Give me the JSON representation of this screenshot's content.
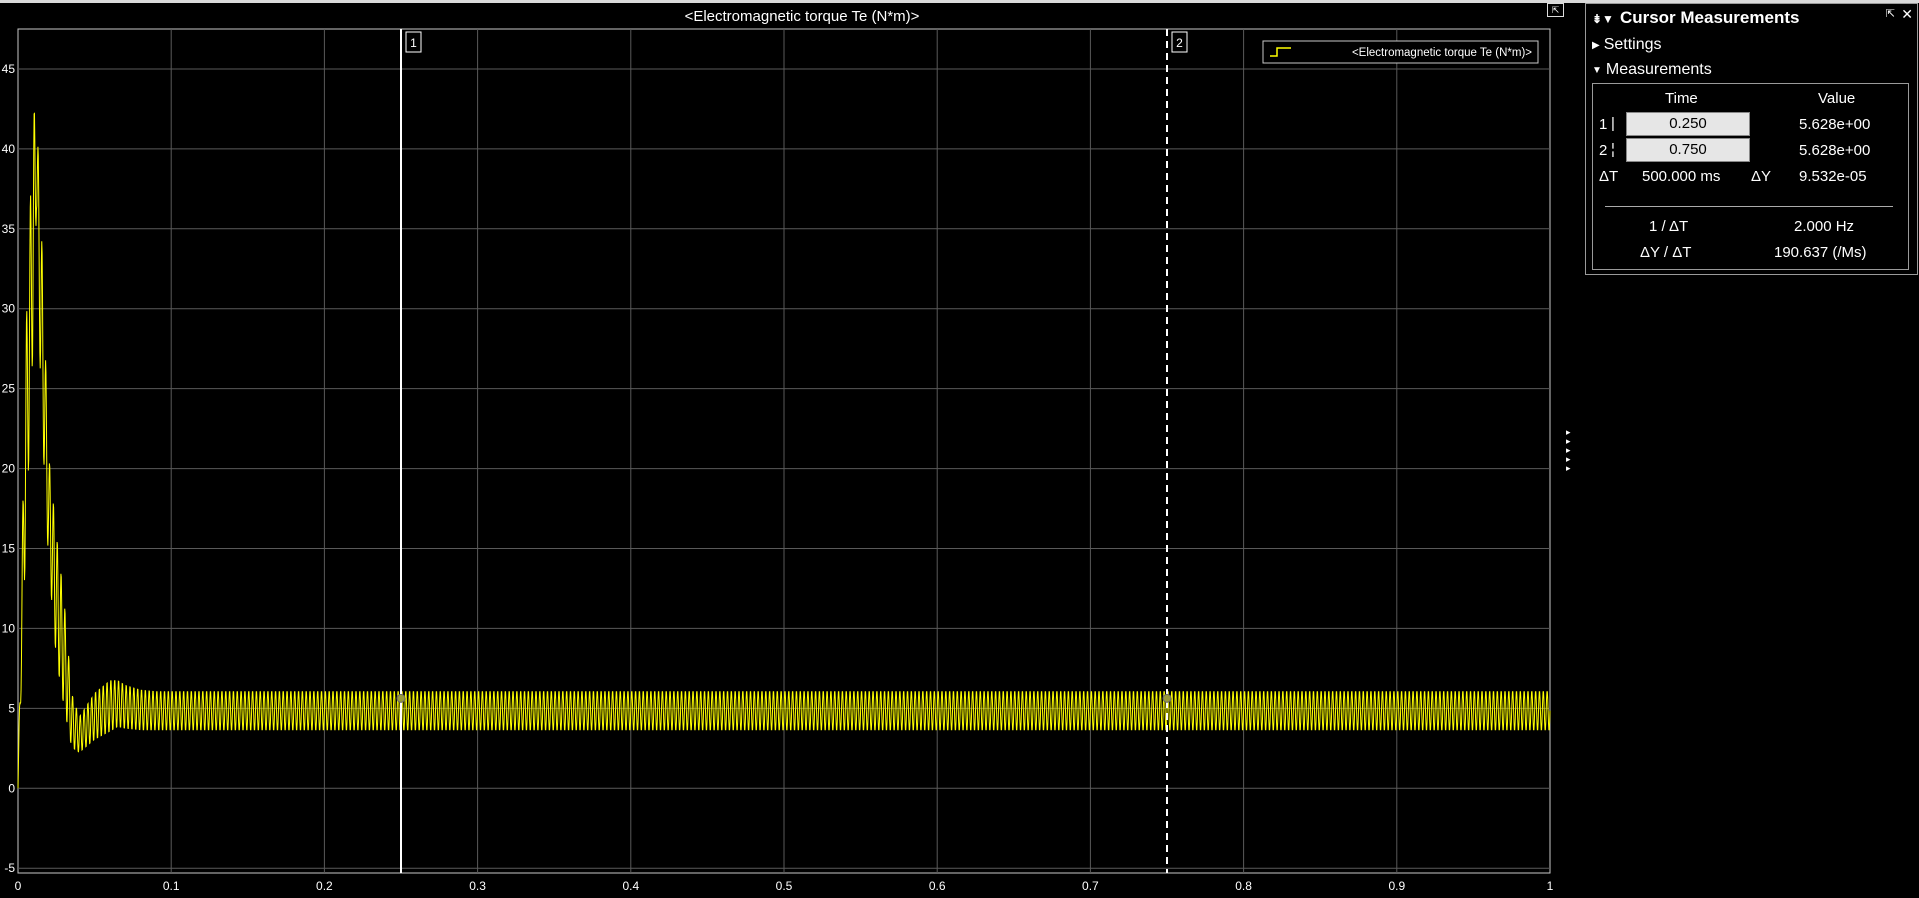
{
  "chart_data": {
    "type": "line",
    "title": "<Electromagnetic torque Te (N*m)>",
    "xlim": [
      0,
      1
    ],
    "ylim": [
      -5.3,
      47.5
    ],
    "xticks": [
      "0",
      "0.1",
      "0.2",
      "0.3",
      "0.4",
      "0.5",
      "0.6",
      "0.7",
      "0.8",
      "0.9",
      "1"
    ],
    "yticks": [
      "-5",
      "0",
      "5",
      "10",
      "15",
      "20",
      "25",
      "30",
      "35",
      "40",
      "45"
    ],
    "grid": true,
    "legend": {
      "position": "top-right",
      "entries": [
        "<Electromagnetic torque Te (N*m)>"
      ]
    },
    "series": [
      {
        "name": "<Electromagnetic torque Te (N*m)>",
        "color": "#ffff00",
        "envelope": {
          "x": [
            0,
            0.005,
            0.01,
            0.012,
            0.015,
            0.02,
            0.025,
            0.03,
            0.035,
            0.04,
            0.05,
            0.06,
            0.065,
            0.07,
            0.08,
            0.09,
            0.1,
            1.0
          ],
          "upper": [
            0,
            28,
            42.5,
            42.5,
            36,
            21,
            16,
            12,
            6,
            4.5,
            6,
            6.8,
            6.8,
            6.5,
            6.2,
            6.1,
            6.1,
            6.1
          ],
          "lower": [
            0,
            15,
            28,
            36,
            24,
            14,
            8,
            5,
            2.5,
            2.2,
            3,
            3.5,
            3.8,
            3.7,
            3.6,
            3.6,
            3.6,
            3.6
          ]
        },
        "ripple_count": 400
      }
    ],
    "cursors": [
      {
        "label": "1",
        "x": 0.25,
        "style": "solid",
        "y": 5.628
      },
      {
        "label": "2",
        "x": 0.75,
        "style": "dashed",
        "y": 5.628
      }
    ]
  },
  "panel": {
    "title": "Cursor Measurements",
    "settings_label": "Settings",
    "measurements_label": "Measurements",
    "col_time": "Time",
    "col_value": "Value",
    "rows": [
      {
        "id": "1",
        "time": "0.250",
        "value": "5.628e+00"
      },
      {
        "id": "2",
        "time": "0.750",
        "value": "5.628e+00"
      }
    ],
    "dt_label": "ΔT",
    "dt_value": "500.000 ms",
    "dy_label": "ΔY",
    "dy_value": "9.532e-05",
    "inv_dt_label": "1 / ΔT",
    "inv_dt_value": "2.000 Hz",
    "slope_label": "ΔY / ΔT",
    "slope_value": "190.637 (/Ms)"
  }
}
